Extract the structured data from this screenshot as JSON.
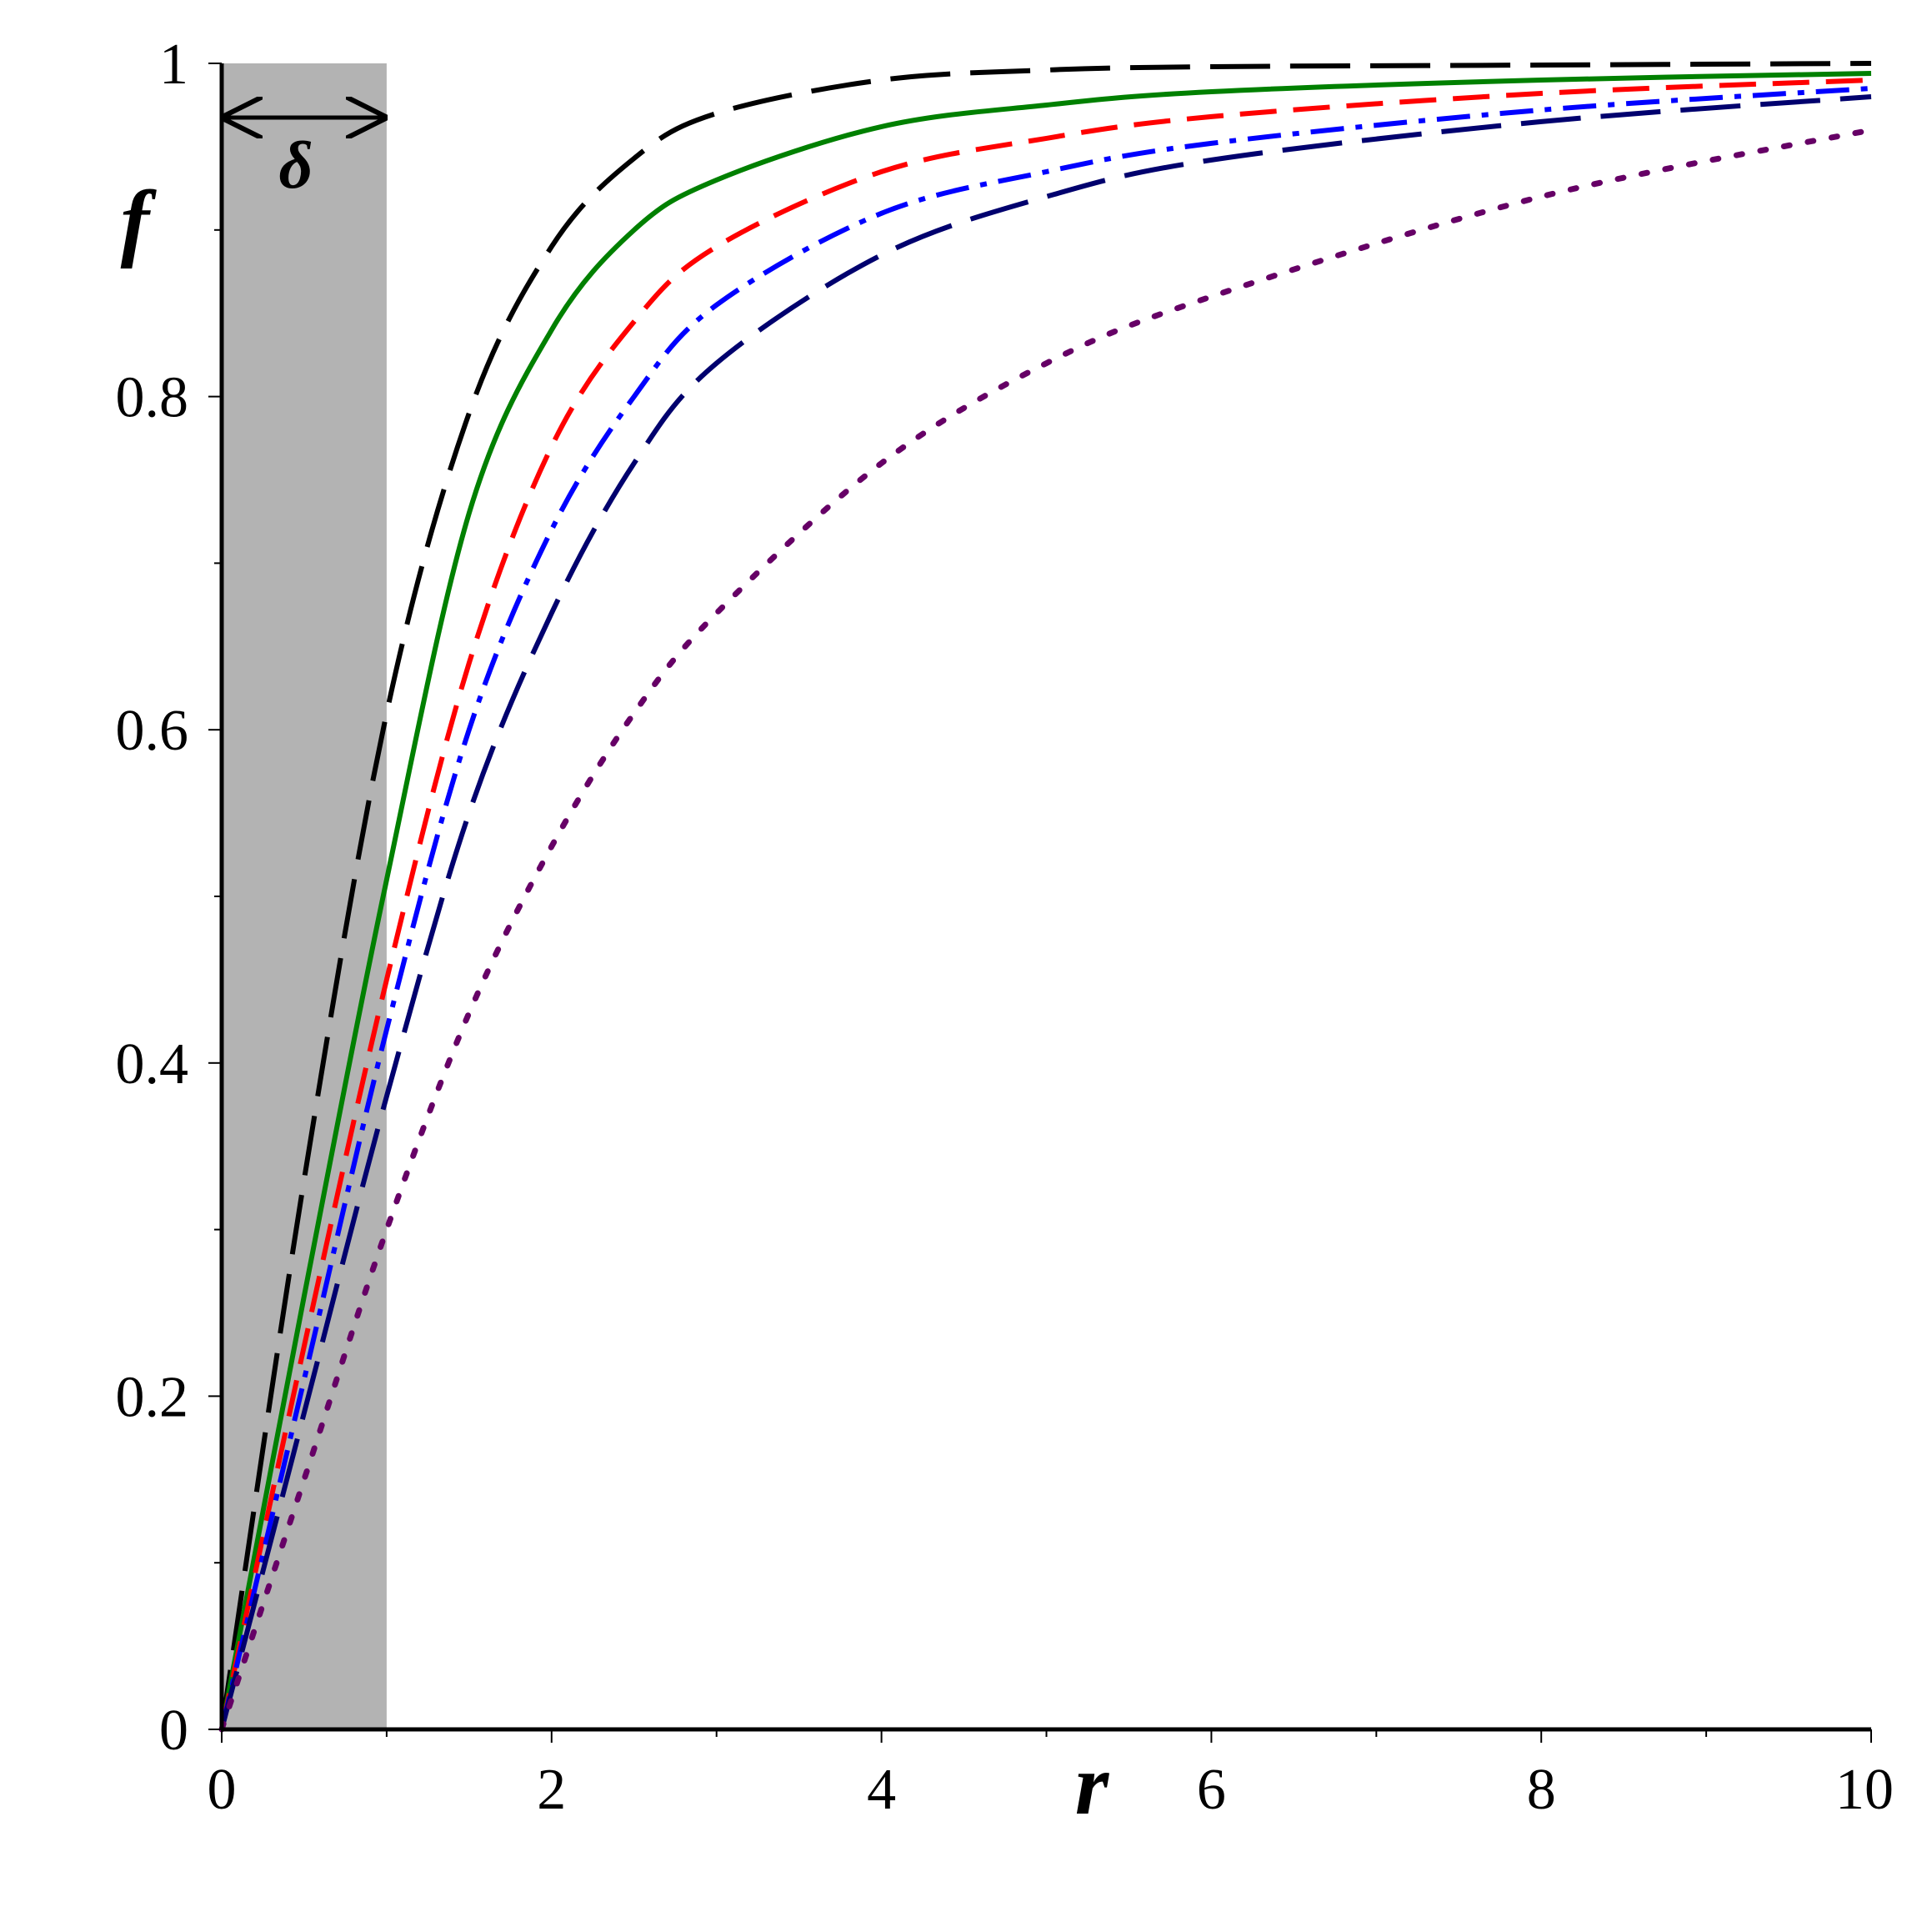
{
  "chart_data": {
    "type": "line",
    "xlabel": "r",
    "ylabel": "f",
    "xlim": [
      0,
      10
    ],
    "ylim": [
      0,
      1
    ],
    "x_ticks": [
      "0",
      "2",
      "4",
      "6",
      "8",
      "10"
    ],
    "y_ticks": [
      "0",
      "0.2",
      "0.4",
      "0.6",
      "0.8",
      "1"
    ],
    "grid": false,
    "shaded_region": {
      "x_range": [
        0,
        1
      ],
      "label": "δ",
      "color": "#b3b3b3"
    },
    "series": [
      {
        "color": "#000000",
        "style": "long-dash",
        "x": [
          0,
          0.5,
          1,
          1.5,
          2,
          2.5,
          3,
          4,
          5,
          6,
          8,
          10
        ],
        "y": [
          0,
          0.33,
          0.61,
          0.79,
          0.89,
          0.943,
          0.97,
          0.99,
          0.996,
          0.998,
          0.999,
          1.0
        ]
      },
      {
        "color": "#008000",
        "style": "solid",
        "x": [
          0,
          0.5,
          1,
          1.5,
          2,
          2.5,
          3,
          4,
          5,
          6,
          8,
          10
        ],
        "y": [
          0,
          0.26,
          0.51,
          0.73,
          0.84,
          0.9,
          0.93,
          0.962,
          0.975,
          0.983,
          0.99,
          0.994
        ]
      },
      {
        "color": "#ff0000",
        "style": "dash",
        "x": [
          0,
          0.5,
          1,
          1.5,
          2,
          2.5,
          3,
          4,
          5,
          6,
          8,
          10
        ],
        "y": [
          0,
          0.23,
          0.45,
          0.64,
          0.77,
          0.845,
          0.89,
          0.935,
          0.955,
          0.968,
          0.982,
          0.99
        ]
      },
      {
        "color": "#0000ff",
        "style": "dash-dot",
        "x": [
          0,
          0.5,
          1,
          1.5,
          2,
          2.5,
          3,
          4,
          5,
          6,
          8,
          10
        ],
        "y": [
          0,
          0.21,
          0.42,
          0.6,
          0.72,
          0.8,
          0.855,
          0.91,
          0.935,
          0.952,
          0.972,
          0.985
        ]
      },
      {
        "color": "#00006e",
        "style": "long-dash",
        "x": [
          0,
          0.5,
          1,
          1.5,
          2,
          2.5,
          3,
          4,
          5,
          6,
          8,
          10
        ],
        "y": [
          0,
          0.19,
          0.38,
          0.55,
          0.67,
          0.76,
          0.82,
          0.885,
          0.92,
          0.942,
          0.965,
          0.98
        ]
      },
      {
        "color": "#660066",
        "style": "dot",
        "x": [
          0,
          0.5,
          1,
          1.5,
          2,
          2.5,
          3,
          4,
          5,
          6,
          8,
          10
        ],
        "y": [
          0,
          0.15,
          0.3,
          0.43,
          0.53,
          0.61,
          0.67,
          0.76,
          0.82,
          0.86,
          0.92,
          0.96
        ]
      }
    ]
  }
}
